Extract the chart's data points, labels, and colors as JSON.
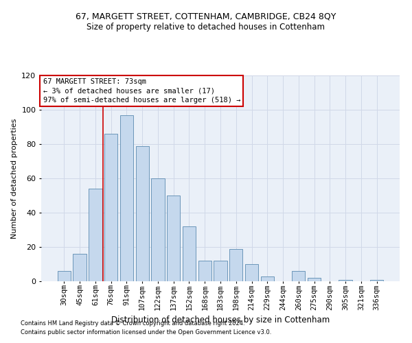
{
  "title1": "67, MARGETT STREET, COTTENHAM, CAMBRIDGE, CB24 8QY",
  "title2": "Size of property relative to detached houses in Cottenham",
  "xlabel": "Distribution of detached houses by size in Cottenham",
  "ylabel": "Number of detached properties",
  "bin_labels": [
    "30sqm",
    "45sqm",
    "61sqm",
    "76sqm",
    "91sqm",
    "107sqm",
    "122sqm",
    "137sqm",
    "152sqm",
    "168sqm",
    "183sqm",
    "198sqm",
    "214sqm",
    "229sqm",
    "244sqm",
    "260sqm",
    "275sqm",
    "290sqm",
    "305sqm",
    "321sqm",
    "336sqm"
  ],
  "bar_values": [
    6,
    16,
    54,
    86,
    97,
    79,
    60,
    50,
    32,
    12,
    12,
    19,
    10,
    3,
    0,
    6,
    2,
    0,
    1,
    0,
    1
  ],
  "bar_color": "#c5d8ed",
  "bar_edge_color": "#5a8ab0",
  "grid_color": "#d0d8e8",
  "background_color": "#eaf0f8",
  "vline_color": "#cc0000",
  "vline_x": 2.5,
  "annotation_text": "67 MARGETT STREET: 73sqm\n← 3% of detached houses are smaller (17)\n97% of semi-detached houses are larger (518) →",
  "annotation_box_color": "#ffffff",
  "annotation_box_edge": "#cc0000",
  "footnote1": "Contains HM Land Registry data © Crown copyright and database right 2024.",
  "footnote2": "Contains public sector information licensed under the Open Government Licence v3.0.",
  "ylim": [
    0,
    120
  ],
  "yticks": [
    0,
    20,
    40,
    60,
    80,
    100,
    120
  ],
  "title1_fontsize": 9,
  "title2_fontsize": 8.5,
  "ylabel_fontsize": 8,
  "xlabel_fontsize": 8.5,
  "tick_fontsize": 7.5,
  "annot_fontsize": 7.5,
  "footnote_fontsize": 6
}
